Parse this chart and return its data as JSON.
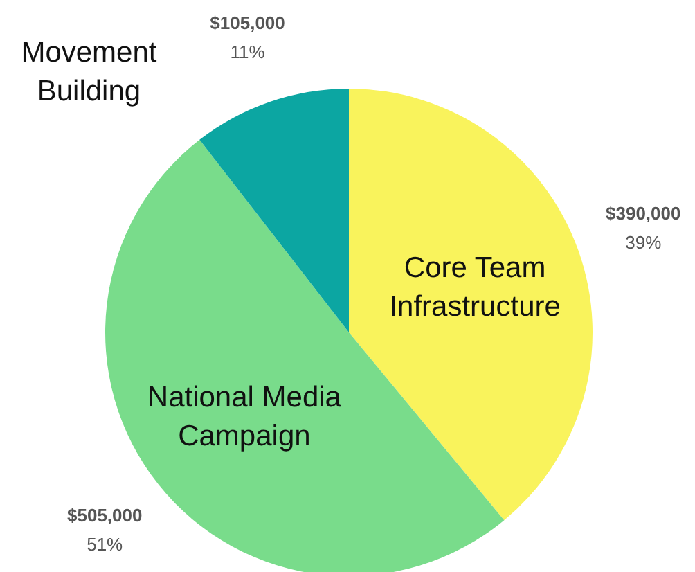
{
  "chart_data": {
    "type": "pie",
    "categories": [
      "Core Team Infrastructure",
      "National Media Campaign",
      "Movement Building"
    ],
    "values": [
      390000,
      505000,
      105000
    ],
    "colors": [
      "#f9f35c",
      "#79dc8b",
      "#0ca6a2"
    ],
    "value_labels": [
      "$390,000\n39%",
      "$505,000\n51%",
      "$105,000\n11%"
    ],
    "legend": false
  }
}
